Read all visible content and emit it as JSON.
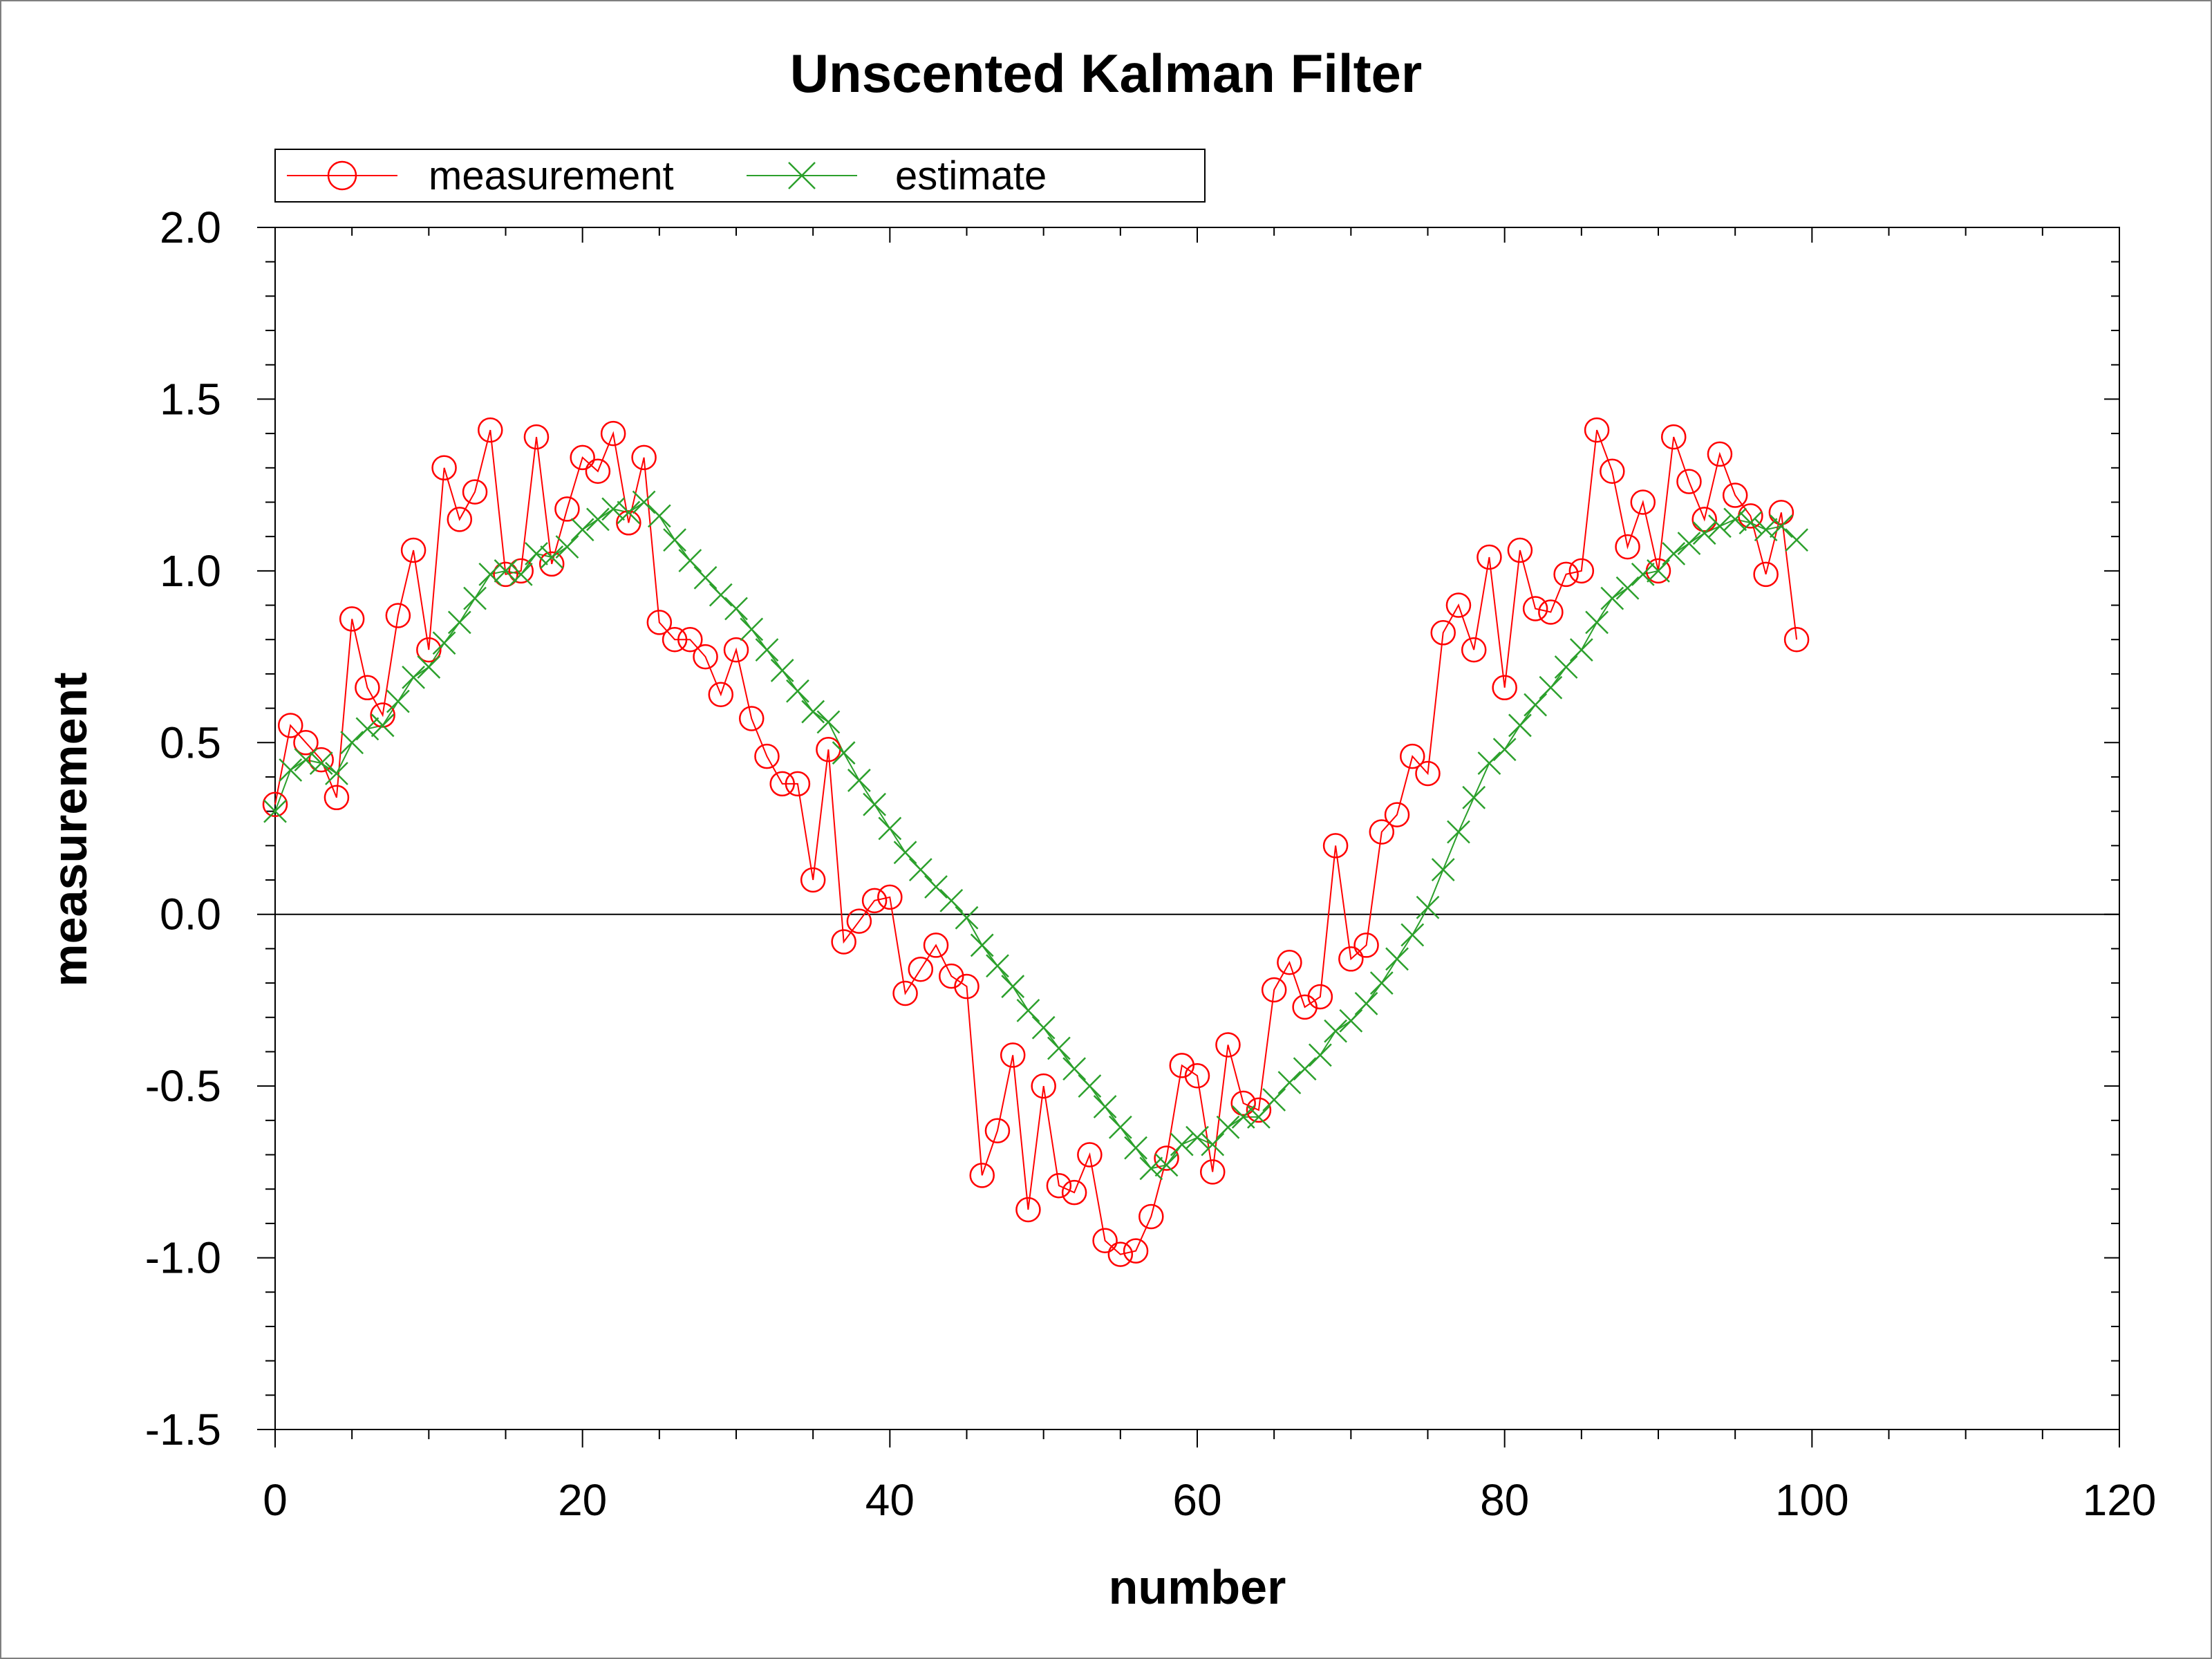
{
  "chart_data": {
    "type": "line",
    "title": "Unscented Kalman Filter",
    "xlabel": "number",
    "ylabel": "measurement",
    "xlim": [
      0,
      120
    ],
    "ylim": [
      -1.5,
      2.0
    ],
    "xticks": [
      "0",
      "20",
      "40",
      "60",
      "80",
      "100",
      "120"
    ],
    "yticks": [
      "-1.5",
      "-1.0",
      "-0.5",
      "0.0",
      "0.5",
      "1.0",
      "1.5",
      "2.0"
    ],
    "zero_line": true,
    "grid": false,
    "legend_position": "top-left",
    "series": [
      {
        "name": "measurement",
        "color": "#ff0000",
        "marker": "circle",
        "x": [
          0,
          1,
          2,
          3,
          4,
          5,
          6,
          7,
          8,
          9,
          10,
          11,
          12,
          13,
          14,
          15,
          16,
          17,
          18,
          19,
          20,
          21,
          22,
          23,
          24,
          25,
          26,
          27,
          28,
          29,
          30,
          31,
          32,
          33,
          34,
          35,
          36,
          37,
          38,
          39,
          40,
          41,
          42,
          43,
          44,
          45,
          46,
          47,
          48,
          49,
          50,
          51,
          52,
          53,
          54,
          55,
          56,
          57,
          58,
          59,
          60,
          61,
          62,
          63,
          64,
          65,
          66,
          67,
          68,
          69,
          70,
          71,
          72,
          73,
          74,
          75,
          76,
          77,
          78,
          79,
          80,
          81,
          82,
          83,
          84,
          85,
          86,
          87,
          88,
          89,
          90,
          91,
          92,
          93,
          94,
          95,
          96,
          97,
          98,
          99
        ],
        "y": [
          0.32,
          0.55,
          0.5,
          0.45,
          0.34,
          0.86,
          0.66,
          0.58,
          0.87,
          1.06,
          0.77,
          1.3,
          1.15,
          1.23,
          1.41,
          0.99,
          1.0,
          1.39,
          1.02,
          1.18,
          1.33,
          1.29,
          1.4,
          1.14,
          1.33,
          0.85,
          0.8,
          0.8,
          0.75,
          0.64,
          0.77,
          0.57,
          0.46,
          0.38,
          0.38,
          0.1,
          0.48,
          -0.08,
          -0.02,
          0.04,
          0.05,
          -0.23,
          -0.16,
          -0.09,
          -0.18,
          -0.21,
          -0.76,
          -0.63,
          -0.41,
          -0.86,
          -0.5,
          -0.79,
          -0.81,
          -0.7,
          -0.95,
          -0.99,
          -0.98,
          -0.88,
          -0.71,
          -0.44,
          -0.47,
          -0.75,
          -0.38,
          -0.55,
          -0.57,
          -0.22,
          -0.14,
          -0.27,
          -0.24,
          0.2,
          -0.13,
          -0.09,
          0.24,
          0.29,
          0.46,
          0.41,
          0.82,
          0.9,
          0.77,
          1.04,
          0.66,
          1.06,
          0.89,
          0.88,
          0.99,
          1.0,
          1.41,
          1.29,
          1.07,
          1.2,
          1.0,
          1.39,
          1.26,
          1.15,
          1.34,
          1.22,
          1.16,
          0.99,
          1.17,
          0.8
        ]
      },
      {
        "name": "estimate",
        "color": "#2ca02c",
        "marker": "x",
        "x": [
          0,
          1,
          2,
          3,
          4,
          5,
          6,
          7,
          8,
          9,
          10,
          11,
          12,
          13,
          14,
          15,
          16,
          17,
          18,
          19,
          20,
          21,
          22,
          23,
          24,
          25,
          26,
          27,
          28,
          29,
          30,
          31,
          32,
          33,
          34,
          35,
          36,
          37,
          38,
          39,
          40,
          41,
          42,
          43,
          44,
          45,
          46,
          47,
          48,
          49,
          50,
          51,
          52,
          53,
          54,
          55,
          56,
          57,
          58,
          59,
          60,
          61,
          62,
          63,
          64,
          65,
          66,
          67,
          68,
          69,
          70,
          71,
          72,
          73,
          74,
          75,
          76,
          77,
          78,
          79,
          80,
          81,
          82,
          83,
          84,
          85,
          86,
          87,
          88,
          89,
          90,
          91,
          92,
          93,
          94,
          95,
          96,
          97,
          98,
          99
        ],
        "y": [
          0.3,
          0.42,
          0.45,
          0.44,
          0.41,
          0.5,
          0.54,
          0.55,
          0.62,
          0.69,
          0.72,
          0.79,
          0.85,
          0.92,
          0.99,
          1.0,
          0.99,
          1.05,
          1.04,
          1.07,
          1.12,
          1.15,
          1.18,
          1.17,
          1.2,
          1.16,
          1.09,
          1.03,
          0.98,
          0.93,
          0.89,
          0.83,
          0.77,
          0.71,
          0.65,
          0.59,
          0.56,
          0.47,
          0.39,
          0.32,
          0.25,
          0.18,
          0.13,
          0.08,
          0.04,
          -0.01,
          -0.09,
          -0.15,
          -0.21,
          -0.28,
          -0.33,
          -0.39,
          -0.45,
          -0.5,
          -0.56,
          -0.62,
          -0.68,
          -0.74,
          -0.73,
          -0.67,
          -0.65,
          -0.67,
          -0.62,
          -0.59,
          -0.59,
          -0.54,
          -0.49,
          -0.45,
          -0.41,
          -0.34,
          -0.31,
          -0.26,
          -0.2,
          -0.13,
          -0.06,
          0.02,
          0.13,
          0.24,
          0.34,
          0.44,
          0.48,
          0.55,
          0.61,
          0.66,
          0.72,
          0.77,
          0.85,
          0.92,
          0.95,
          0.99,
          1.0,
          1.05,
          1.08,
          1.11,
          1.13,
          1.15,
          1.14,
          1.12,
          1.13,
          1.09
        ]
      }
    ]
  }
}
